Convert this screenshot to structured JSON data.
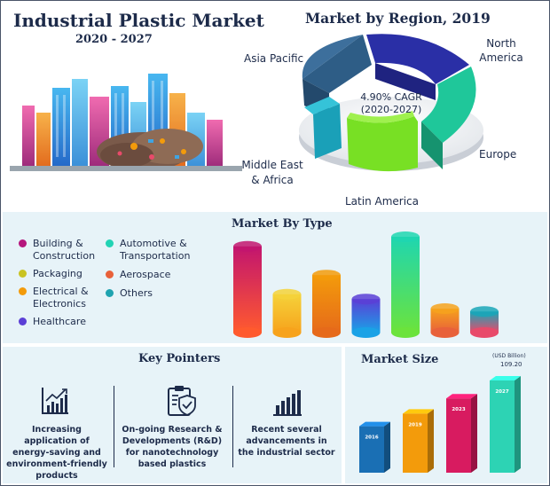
{
  "header": {
    "title": "Industrial Plastic Market",
    "period": "2020 - 2027"
  },
  "region": {
    "title": "Market by Region, 2019",
    "center_text_1": "4.90% CAGR",
    "center_text_2": "(2020-2027)",
    "labels": {
      "asia_pacific": "Asia Pacific",
      "north_america": "North America",
      "europe": "Europe",
      "latin_america": "Latin America",
      "middle_east_africa": "Middle East & Africa"
    },
    "colors": {
      "asia_pacific": "#2e5d86",
      "north_america": "#2a2fa6",
      "europe": "#1fc79a",
      "latin_america": "#78e024",
      "middle_east_africa": "#1aa0b8"
    }
  },
  "type_section": {
    "title": "Market By Type",
    "legend": [
      {
        "label": "Building & Construction",
        "color": "#b5177d"
      },
      {
        "label": "Packaging",
        "color": "#c9c322"
      },
      {
        "label": "Electrical & Electronics",
        "color": "#f39b0b"
      },
      {
        "label": "Healthcare",
        "color": "#5b3fd6"
      },
      {
        "label": "Automotive & Transportation",
        "color": "#22d3b4"
      },
      {
        "label": "Aerospace",
        "color": "#e8613a"
      },
      {
        "label": "Others",
        "color": "#1fa3b0"
      }
    ]
  },
  "key_pointers": {
    "title": "Key Pointers",
    "items": [
      {
        "text": "Increasing application of energy-saving and environment-friendly products",
        "icon": "bar-chart-trend-icon"
      },
      {
        "text": "On-going Research & Developments (R&D) for nanotechnology based plastics",
        "icon": "clipboard-shield-icon"
      },
      {
        "text": "Recent several advancements in the industrial sector",
        "icon": "bar-chart-icon"
      }
    ]
  },
  "market_size": {
    "title": "Market Size",
    "unit": "(USD Billion)",
    "final_value": "109.20"
  },
  "chart_data": [
    {
      "type": "pie",
      "title": "Market by Region, 2019",
      "categories": [
        "North America",
        "Europe",
        "Latin America",
        "Middle East & Africa",
        "Asia Pacific"
      ],
      "values": [
        16,
        22,
        17,
        10,
        35
      ]
    },
    {
      "type": "bar",
      "title": "Market By Type",
      "categories": [
        "Building & Construction",
        "Packaging",
        "Electrical & Electronics",
        "Healthcare",
        "Automotive & Transportation",
        "Aerospace",
        "Others"
      ],
      "values": [
        90,
        40,
        60,
        35,
        100,
        25,
        22
      ],
      "colors": [
        [
          "#c2156f",
          "#ff5a2e"
        ],
        [
          "#f5d23a",
          "#f7a31c"
        ],
        [
          "#f39b0b",
          "#e66a1a"
        ],
        [
          "#5b3fd6",
          "#1aa2e6"
        ],
        [
          "#1fd6b0",
          "#6be33c"
        ],
        [
          "#f6a21d",
          "#e8613a"
        ],
        [
          "#1aa6b8",
          "#e84a6a"
        ]
      ]
    },
    {
      "type": "bar",
      "title": "Market Size",
      "ylabel": "(USD Billion)",
      "categories": [
        "2016",
        "2019",
        "2023",
        "2027"
      ],
      "values": [
        55,
        70,
        88,
        109.2
      ],
      "colors": [
        "#1a6fb4",
        "#f39b0b",
        "#d81b60",
        "#2dd3b4"
      ]
    }
  ]
}
